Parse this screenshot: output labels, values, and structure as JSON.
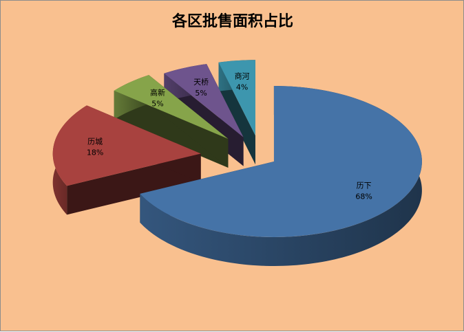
{
  "chart_data": {
    "type": "pie",
    "style": "3d-exploded",
    "title": "各区批售面积占比",
    "slices": [
      {
        "label": "历下",
        "percent": "68%",
        "value": 68,
        "color": "#4573a7"
      },
      {
        "label": "历城",
        "percent": "18%",
        "value": 18,
        "color": "#a8423f"
      },
      {
        "label": "高新",
        "percent": "5%",
        "value": 5,
        "color": "#86a44a"
      },
      {
        "label": "天桥",
        "percent": "5%",
        "value": 5,
        "color": "#6e548d"
      },
      {
        "label": "商河",
        "percent": "4%",
        "value": 4,
        "color": "#3d96ae"
      }
    ],
    "start_angle": "12 o'clock",
    "direction": "clockwise",
    "background": "#f9c08f"
  }
}
